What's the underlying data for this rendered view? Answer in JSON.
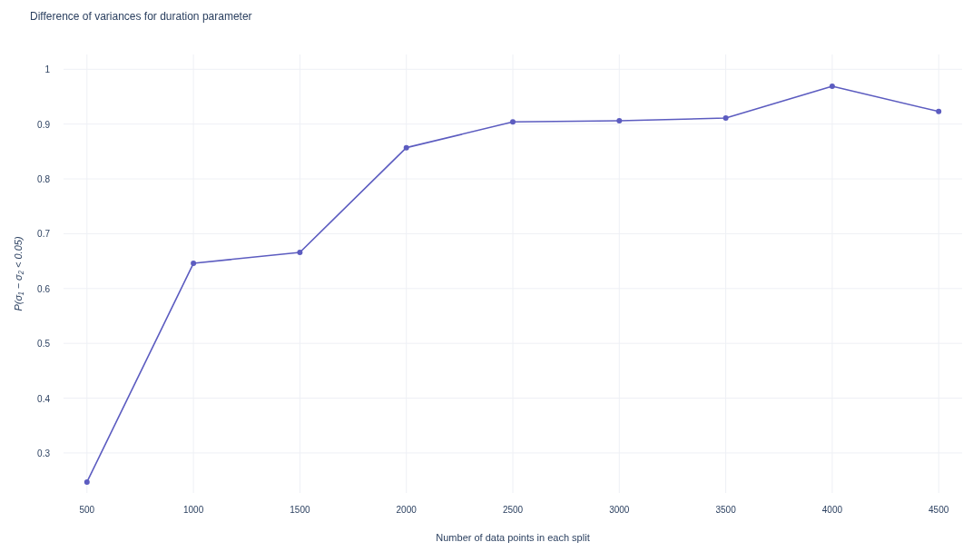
{
  "chart_data": {
    "type": "line",
    "title": "Difference of variances for duration parameter",
    "xlabel": "Number of data points in each split",
    "ylabel": "P(σ₁ − σ₂ < 0.05)",
    "x": [
      500,
      1000,
      1500,
      2000,
      2500,
      3000,
      3500,
      4000,
      4500
    ],
    "series": [
      {
        "color": "#5c5cc0",
        "values": [
          0.247,
          0.646,
          0.666,
          0.857,
          0.904,
          0.906,
          0.911,
          0.969,
          0.923
        ]
      }
    ],
    "xlim": [
      390,
      4610
    ],
    "xticks": [
      500,
      1000,
      1500,
      2000,
      2500,
      3000,
      3500,
      4000,
      4500
    ],
    "ylim": [
      0.227,
      1.027
    ],
    "yticks": [
      0.3,
      0.4,
      0.5,
      0.6,
      0.7,
      0.8,
      0.9,
      1
    ],
    "grid": true,
    "marker": "circle",
    "line_style": "solid"
  }
}
